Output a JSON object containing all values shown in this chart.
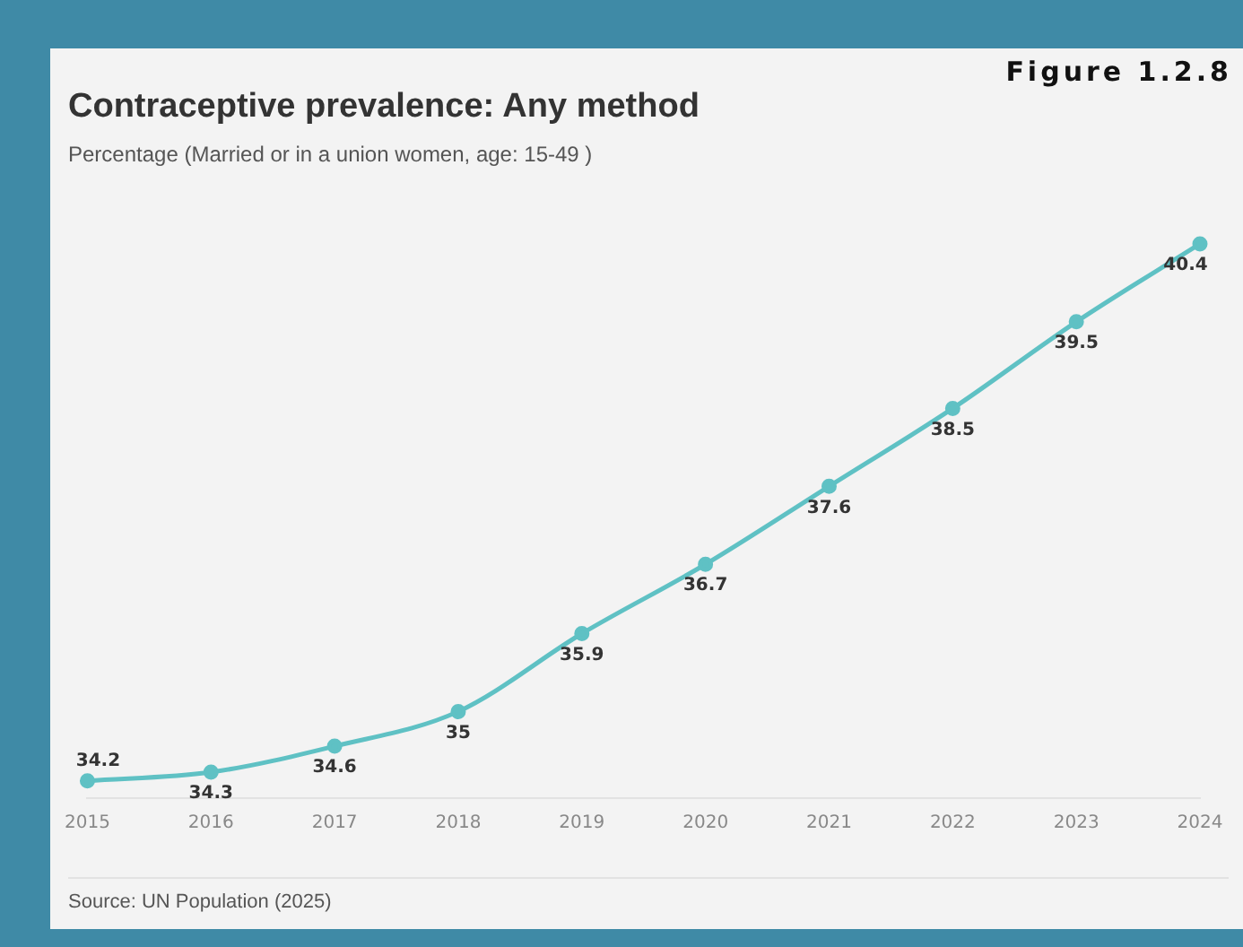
{
  "chart_data": {
    "type": "line",
    "title": "Contraceptive prevalence: Any method",
    "subtitle": "Percentage (Married or in a union women, age: 15-49 )",
    "categories": [
      "2015",
      "2016",
      "2017",
      "2018",
      "2019",
      "2020",
      "2021",
      "2022",
      "2023",
      "2024"
    ],
    "series": [
      {
        "color": "#5fc1c4",
        "values": [
          34.2,
          34.3,
          34.6,
          35,
          35.9,
          36.7,
          37.6,
          38.5,
          39.5,
          40.4
        ]
      }
    ],
    "data_labels": true,
    "grid": false,
    "legend": false,
    "marker": "circle",
    "line_style": "solid",
    "annotations": [
      "Figure 1.2.8",
      "Source: UN Population (2025)"
    ]
  }
}
